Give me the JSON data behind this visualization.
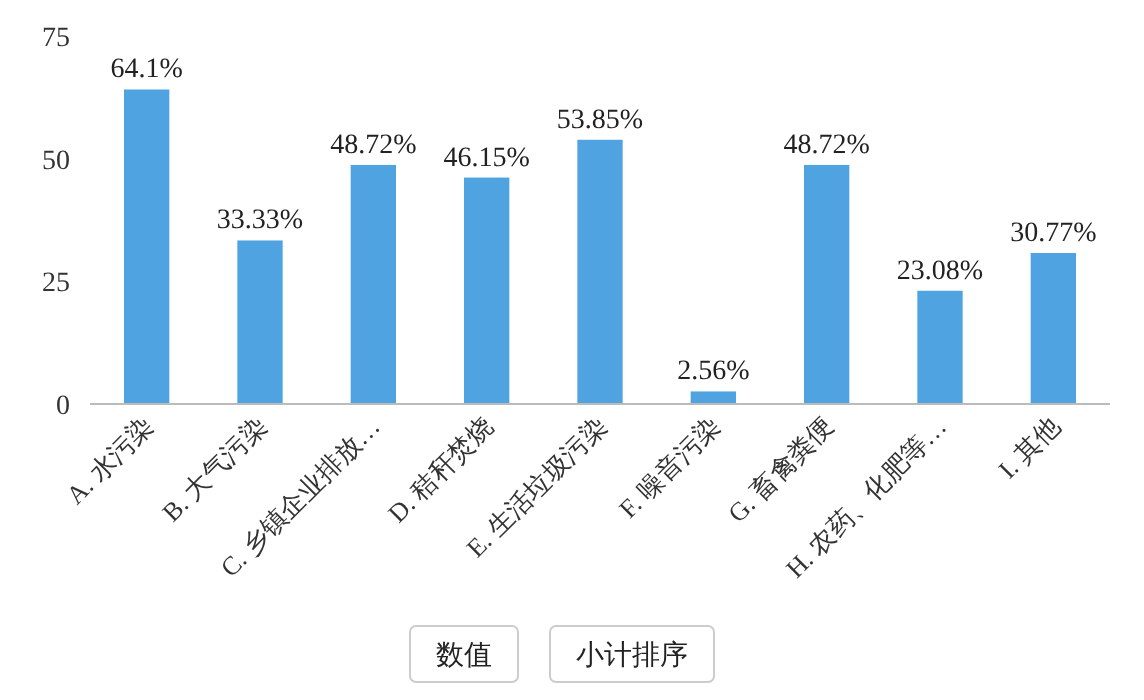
{
  "chart_data": {
    "type": "bar",
    "categories": [
      "A. 水污染",
      "B. 大气污染",
      "C. 乡镇企业排放…",
      "D. 秸秆焚烧",
      "E. 生活垃圾污染",
      "F. 噪音污染",
      "G. 畜禽粪便",
      "H. 农药、化肥等…",
      "I. 其他"
    ],
    "values": [
      64.1,
      33.33,
      48.72,
      46.15,
      53.85,
      2.56,
      48.72,
      23.08,
      30.77
    ],
    "value_labels": [
      "64.1%",
      "33.33%",
      "48.72%",
      "46.15%",
      "53.85%",
      "2.56%",
      "48.72%",
      "23.08%",
      "30.77%"
    ],
    "color": "#4fa3e0",
    "ylim": [
      0,
      75
    ],
    "yticks": [
      0,
      25,
      50,
      75
    ],
    "annotations": [
      "数值",
      "小计排序"
    ]
  }
}
